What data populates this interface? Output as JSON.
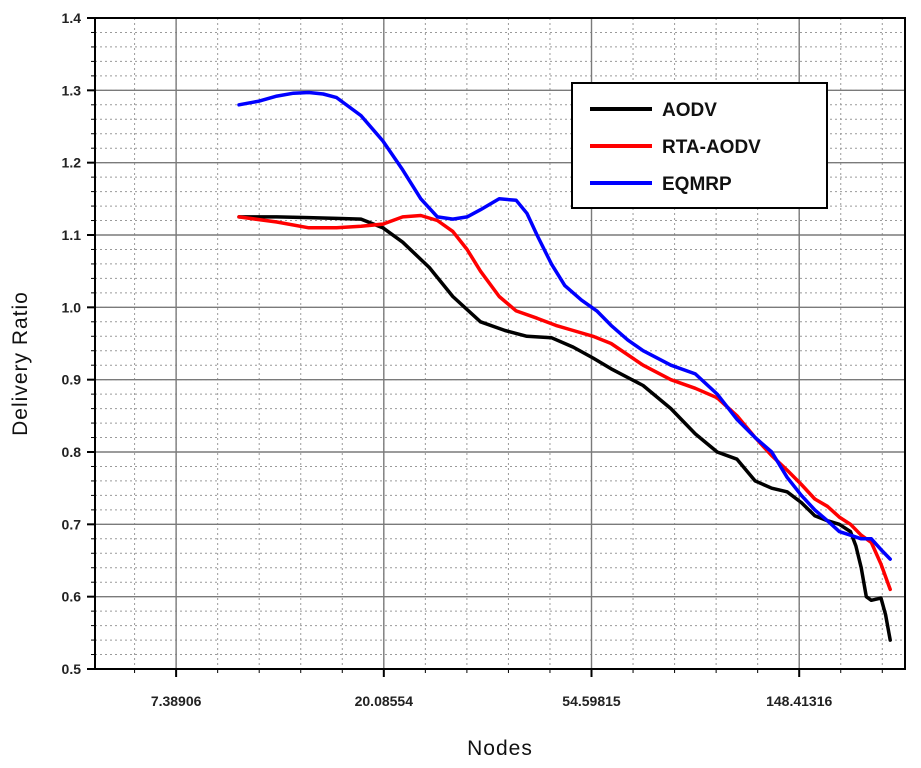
{
  "chart_data": {
    "type": "line",
    "title": "",
    "xlabel": "Nodes",
    "ylabel": "Delivery Ratio",
    "x_scale": "log",
    "xlim": [
      5,
      247
    ],
    "ylim": [
      0.5,
      1.4
    ],
    "grid": true,
    "legend_position": "top-right",
    "x_ticks": [
      {
        "value": 7.38906,
        "label": "7.38906"
      },
      {
        "value": 20.08554,
        "label": "20.08554"
      },
      {
        "value": 54.59815,
        "label": "54.59815"
      },
      {
        "value": 148.41316,
        "label": "148.41316"
      }
    ],
    "y_ticks": [
      {
        "value": 0.5,
        "label": "0.5"
      },
      {
        "value": 0.6,
        "label": "0.6"
      },
      {
        "value": 0.7,
        "label": "0.7"
      },
      {
        "value": 0.8,
        "label": "0.8"
      },
      {
        "value": 0.9,
        "label": "0.9"
      },
      {
        "value": 1.0,
        "label": "1.0"
      },
      {
        "value": 1.1,
        "label": "1.1"
      },
      {
        "value": 1.2,
        "label": "1.2"
      },
      {
        "value": 1.3,
        "label": "1.3"
      },
      {
        "value": 1.4,
        "label": "1.4"
      }
    ],
    "series": [
      {
        "name": "AODV",
        "color": "#000000",
        "x": [
          10,
          12,
          14,
          16,
          18,
          20,
          22,
          25,
          28,
          32,
          36,
          40,
          45,
          50,
          55,
          60,
          70,
          80,
          90,
          100,
          110,
          120,
          130,
          140,
          150,
          160,
          170,
          180,
          190,
          195,
          200,
          205,
          210,
          220,
          225,
          230
        ],
        "y": [
          1.125,
          1.125,
          1.124,
          1.123,
          1.122,
          1.11,
          1.09,
          1.055,
          1.015,
          0.98,
          0.968,
          0.96,
          0.958,
          0.945,
          0.93,
          0.915,
          0.892,
          0.86,
          0.825,
          0.8,
          0.79,
          0.76,
          0.75,
          0.745,
          0.73,
          0.712,
          0.705,
          0.7,
          0.69,
          0.67,
          0.64,
          0.6,
          0.595,
          0.598,
          0.575,
          0.54
        ]
      },
      {
        "name": "RTA-AODV",
        "color": "#ff0000",
        "x": [
          10,
          12,
          14,
          16,
          18,
          20,
          22,
          24,
          26,
          28,
          30,
          32,
          35,
          38,
          42,
          46,
          50,
          55,
          60,
          70,
          80,
          90,
          100,
          110,
          120,
          130,
          140,
          150,
          160,
          170,
          180,
          190,
          200,
          210,
          220,
          230
        ],
        "y": [
          1.125,
          1.118,
          1.11,
          1.11,
          1.112,
          1.115,
          1.125,
          1.127,
          1.12,
          1.105,
          1.08,
          1.05,
          1.015,
          0.995,
          0.985,
          0.975,
          0.968,
          0.96,
          0.95,
          0.92,
          0.9,
          0.888,
          0.875,
          0.85,
          0.82,
          0.795,
          0.775,
          0.755,
          0.735,
          0.725,
          0.71,
          0.7,
          0.685,
          0.675,
          0.645,
          0.61
        ]
      },
      {
        "name": "EQMRP",
        "color": "#0000ff",
        "x": [
          10,
          11,
          12,
          13,
          14,
          15,
          16,
          18,
          20,
          22,
          24,
          26,
          28,
          30,
          32,
          35,
          38,
          40,
          42,
          45,
          48,
          52,
          56,
          60,
          65,
          70,
          80,
          90,
          100,
          110,
          120,
          130,
          140,
          150,
          160,
          170,
          180,
          190,
          200,
          210,
          220,
          230
        ],
        "y": [
          1.28,
          1.285,
          1.292,
          1.296,
          1.297,
          1.295,
          1.29,
          1.265,
          1.23,
          1.19,
          1.15,
          1.125,
          1.122,
          1.125,
          1.135,
          1.15,
          1.148,
          1.13,
          1.1,
          1.06,
          1.03,
          1.01,
          0.995,
          0.975,
          0.955,
          0.94,
          0.92,
          0.908,
          0.88,
          0.845,
          0.82,
          0.8,
          0.765,
          0.74,
          0.72,
          0.705,
          0.69,
          0.685,
          0.68,
          0.68,
          0.665,
          0.652
        ]
      }
    ]
  }
}
